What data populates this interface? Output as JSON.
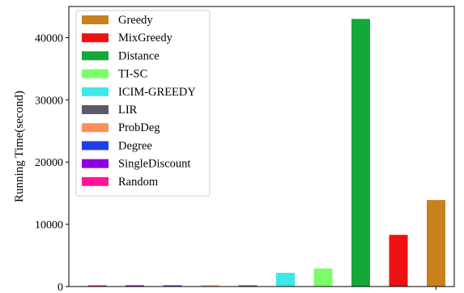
{
  "chart_data": {
    "type": "bar",
    "ylabel": "Running Time(second)",
    "xlabel": "",
    "ylim": [
      0,
      45000
    ],
    "yticks": [
      0,
      10000,
      20000,
      30000,
      40000
    ],
    "grid": false,
    "legend_position": "top-left",
    "legend_order": [
      "Greedy",
      "MixGreedy",
      "Distance",
      "TI-SC",
      "ICIM-GREEDY",
      "LIR",
      "ProbDeg",
      "Degree",
      "SingleDiscount",
      "Random"
    ],
    "series": [
      {
        "name": "Random",
        "value": 60,
        "color": "#ff1493"
      },
      {
        "name": "SingleDiscount",
        "value": 150,
        "color": "#8a00e0"
      },
      {
        "name": "Degree",
        "value": 80,
        "color": "#1e40e8"
      },
      {
        "name": "ProbDeg",
        "value": 100,
        "color": "#ff8f5a"
      },
      {
        "name": "LIR",
        "value": 120,
        "color": "#5a5a6a"
      },
      {
        "name": "ICIM-GREEDY",
        "value": 2200,
        "color": "#3de8e8"
      },
      {
        "name": "TI-SC",
        "value": 2900,
        "color": "#7cfc6b"
      },
      {
        "name": "Distance",
        "value": 43000,
        "color": "#12a83a"
      },
      {
        "name": "MixGreedy",
        "value": 8300,
        "color": "#ee1111"
      },
      {
        "name": "Greedy",
        "value": 13900,
        "color": "#c8811c"
      }
    ]
  }
}
